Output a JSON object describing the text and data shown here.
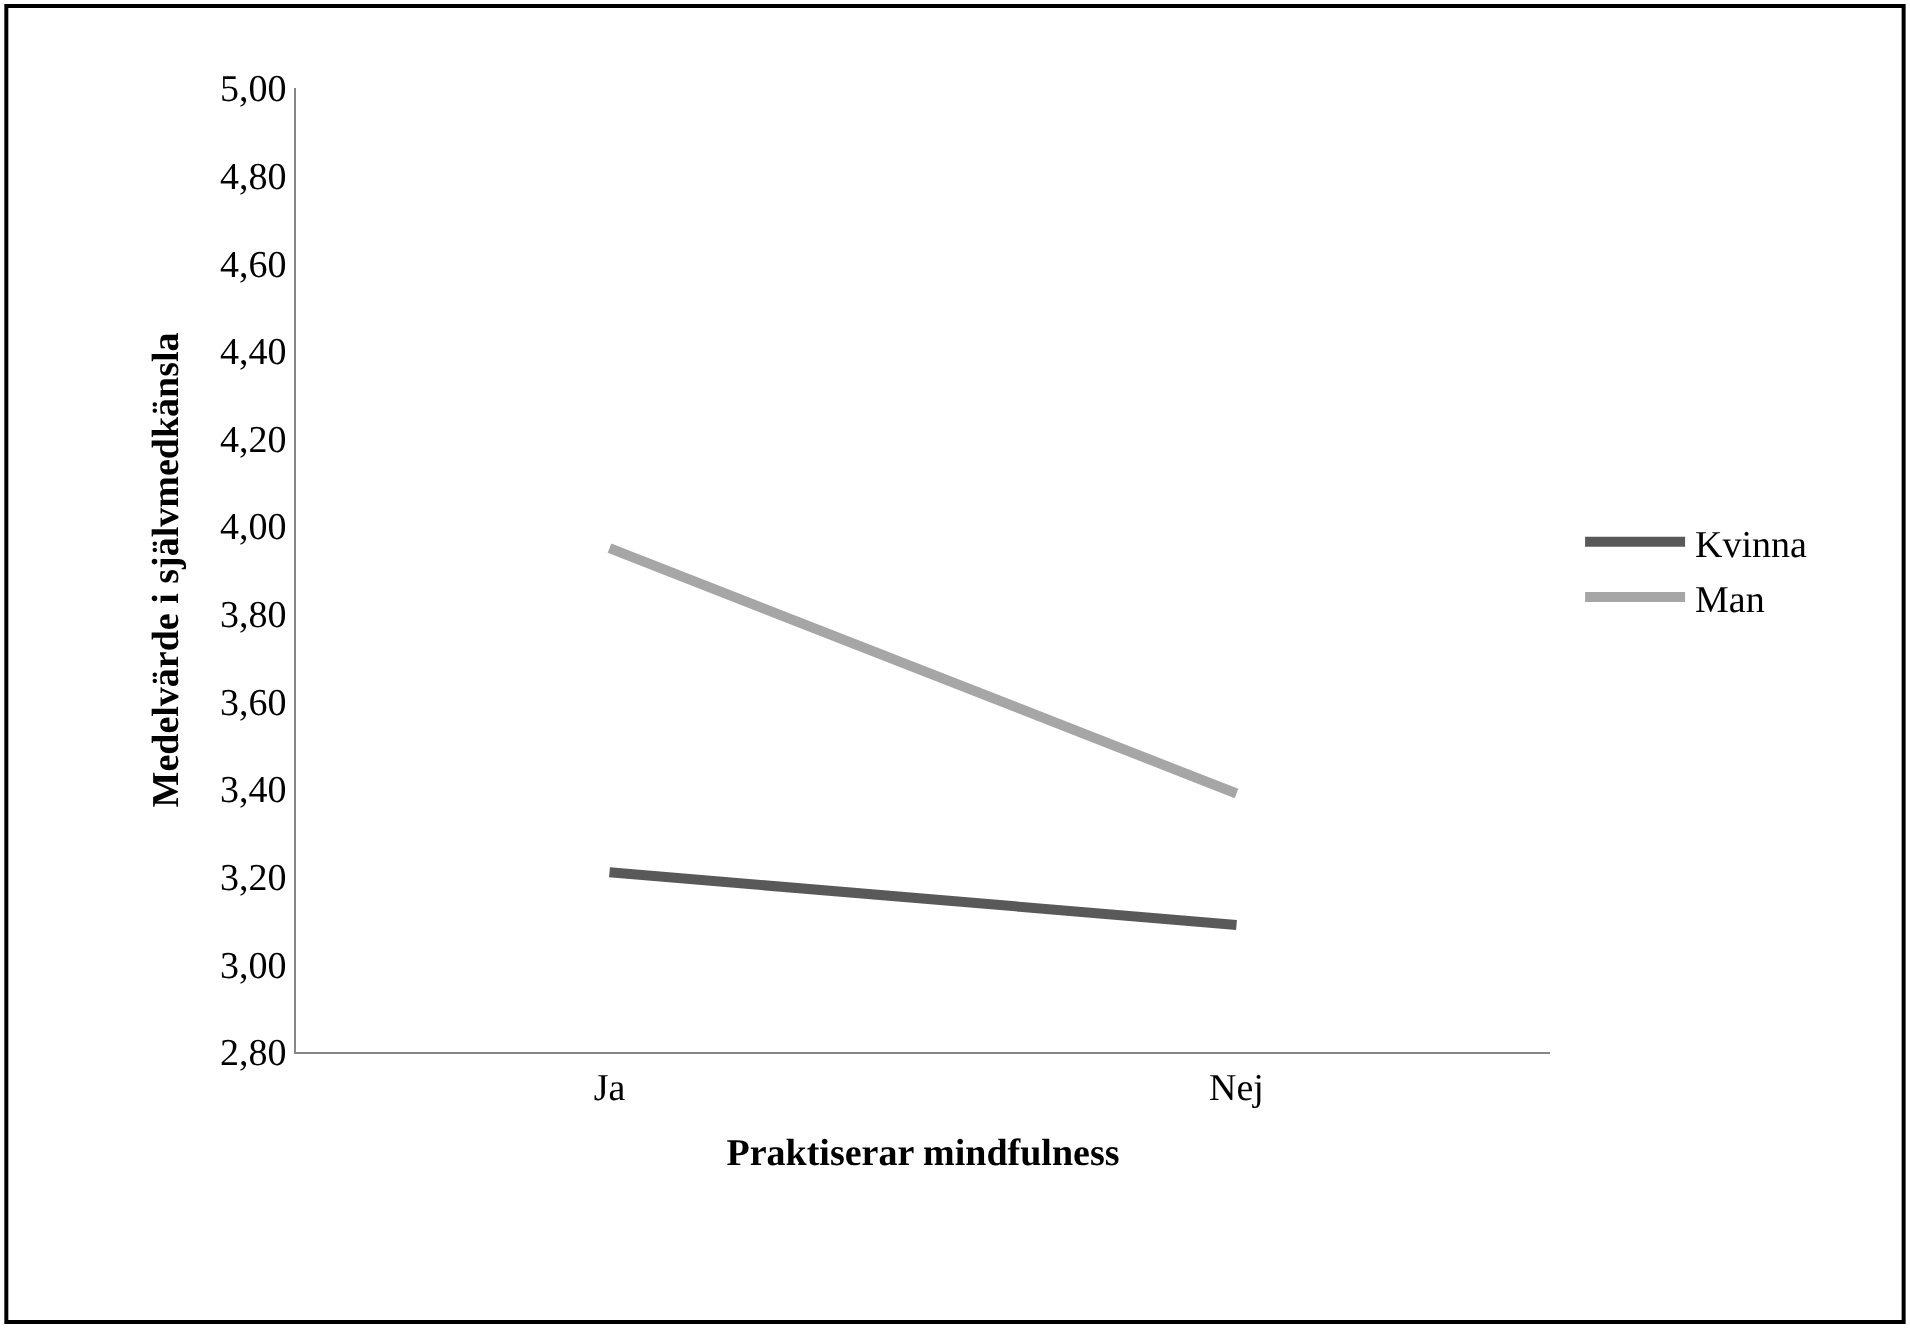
{
  "chart_data": {
    "type": "line",
    "xlabel": "Praktiserar mindfulness",
    "ylabel": "Medelvärde i självmedkänsla",
    "categories": [
      "Ja",
      "Nej"
    ],
    "series": [
      {
        "name": "Kvinna",
        "color": "#595959",
        "values": [
          3.21,
          3.09
        ]
      },
      {
        "name": "Man",
        "color": "#a6a6a6",
        "values": [
          3.95,
          3.39
        ]
      }
    ],
    "ylim": [
      2.8,
      5.0
    ],
    "yticks": [
      {
        "value": 2.8,
        "label": "2,80"
      },
      {
        "value": 3.0,
        "label": "3,00"
      },
      {
        "value": 3.2,
        "label": "3,20"
      },
      {
        "value": 3.4,
        "label": "3,40"
      },
      {
        "value": 3.6,
        "label": "3,60"
      },
      {
        "value": 3.8,
        "label": "3,80"
      },
      {
        "value": 4.0,
        "label": "4,00"
      },
      {
        "value": 4.2,
        "label": "4,20"
      },
      {
        "value": 4.4,
        "label": "4,40"
      },
      {
        "value": 4.6,
        "label": "4,60"
      },
      {
        "value": 4.8,
        "label": "4,80"
      },
      {
        "value": 5.0,
        "label": "5,00"
      }
    ],
    "legend": "right",
    "marker": "none",
    "line_style": "solid"
  }
}
